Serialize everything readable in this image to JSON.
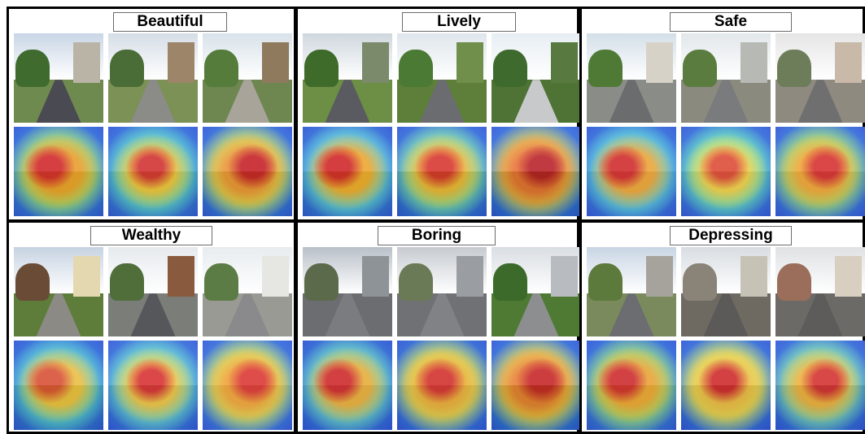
{
  "panels": [
    {
      "title": "Beautiful",
      "photos": [
        {
          "name": "beautiful-street-photo-1",
          "sky": "#c9d6e6",
          "ground": "#6f8a4e",
          "road": "#4a4a52",
          "trees": "#3f6b2e",
          "block": "#b9b4a6"
        },
        {
          "name": "beautiful-street-photo-2",
          "sky": "#d5dde6",
          "ground": "#7b9155",
          "road": "#8b8b88",
          "trees": "#4a6d37",
          "block": "#9c8568"
        },
        {
          "name": "beautiful-street-photo-3",
          "sky": "#d8e2e9",
          "ground": "#6e8751",
          "road": "#a8a49a",
          "trees": "#557c3b",
          "block": "#8f7a5d"
        }
      ],
      "heatmaps": [
        {
          "name": "beautiful-heatmap-1",
          "hot": "#d81e1e",
          "warm": "#f29d1f",
          "mid": "#9ee26a"
        },
        {
          "name": "beautiful-heatmap-2",
          "hot": "#d62626",
          "warm": "#f1c232",
          "mid": "#53d6c8"
        },
        {
          "name": "beautiful-heatmap-3",
          "hot": "#c8141a",
          "warm": "#f0902a",
          "mid": "#d9e04a"
        }
      ]
    },
    {
      "title": "Lively",
      "photos": [
        {
          "name": "lively-street-photo-1",
          "sky": "#cfd7de",
          "ground": "#6c8e45",
          "road": "#595b60",
          "trees": "#3e6a2a",
          "block": "#7a8a6a"
        },
        {
          "name": "lively-street-photo-2",
          "sky": "#dfe6ec",
          "ground": "#5d7f3a",
          "road": "#6a6c70",
          "trees": "#4b7a34",
          "block": "#6f8f4a"
        },
        {
          "name": "lively-street-photo-3",
          "sky": "#e7eef3",
          "ground": "#4f7334",
          "road": "#c7c9cb",
          "trees": "#3f6a2e",
          "block": "#587a40"
        }
      ],
      "heatmaps": [
        {
          "name": "lively-heatmap-1",
          "hot": "#d61d1d",
          "warm": "#f5a623",
          "mid": "#5fd6d9"
        },
        {
          "name": "lively-heatmap-2",
          "hot": "#db2a22",
          "warm": "#f3b52f",
          "mid": "#7fe0a0"
        },
        {
          "name": "lively-heatmap-3",
          "hot": "#b8121a",
          "warm": "#ec6a2a",
          "mid": "#e8c33a"
        }
      ]
    },
    {
      "title": "Safe",
      "photos": [
        {
          "name": "safe-street-photo-1",
          "sky": "#d3dfe8",
          "ground": "#8a8c88",
          "road": "#6b6c6e",
          "trees": "#4f7a36",
          "block": "#d6d2c8"
        },
        {
          "name": "safe-street-photo-2",
          "sky": "#e2e7ea",
          "ground": "#8b8a7e",
          "road": "#7a7b7c",
          "trees": "#5a7c3e",
          "block": "#b7b9b4"
        },
        {
          "name": "safe-street-photo-3",
          "sky": "#e4e5e4",
          "ground": "#8e8a80",
          "road": "#6f6f70",
          "trees": "#6d7d5a",
          "block": "#c9b9a8"
        }
      ],
      "heatmaps": [
        {
          "name": "safe-heatmap-1",
          "hot": "#d52020",
          "warm": "#f2a42b",
          "mid": "#56d4d8"
        },
        {
          "name": "safe-heatmap-2",
          "hot": "#e0402a",
          "warm": "#f3d23e",
          "mid": "#5ce0b8"
        },
        {
          "name": "safe-heatmap-3",
          "hot": "#d72424",
          "warm": "#f2a52a",
          "mid": "#a2e064"
        }
      ]
    },
    {
      "title": "Wealthy",
      "photos": [
        {
          "name": "wealthy-street-photo-1",
          "sky": "#c7d3e2",
          "ground": "#5e7d3b",
          "road": "#8c8a84",
          "trees": "#6a4b36",
          "block": "#e3d8b0"
        },
        {
          "name": "wealthy-street-photo-2",
          "sky": "#e6eaee",
          "ground": "#7a7d78",
          "road": "#55575a",
          "trees": "#4f6e3a",
          "block": "#8a5a3e"
        },
        {
          "name": "wealthy-street-photo-3",
          "sky": "#e8ecef",
          "ground": "#9a9a94",
          "road": "#8a8a8c",
          "trees": "#5b7c45",
          "block": "#e6e6e2"
        }
      ],
      "heatmaps": [
        {
          "name": "wealthy-heatmap-1",
          "hot": "#e04a2a",
          "warm": "#f4c23a",
          "mid": "#55d3d0"
        },
        {
          "name": "wealthy-heatmap-2",
          "hot": "#d92525",
          "warm": "#f3c63a",
          "mid": "#62d8c8"
        },
        {
          "name": "wealthy-heatmap-3",
          "hot": "#dc2a26",
          "warm": "#f2a02a",
          "mid": "#d8e24c"
        }
      ]
    },
    {
      "title": "Boring",
      "photos": [
        {
          "name": "boring-street-photo-1",
          "sky": "#b9c0c9",
          "ground": "#6c6d70",
          "road": "#7b7c80",
          "trees": "#5a6a4a",
          "block": "#8e9398"
        },
        {
          "name": "boring-street-photo-2",
          "sky": "#c6cbd0",
          "ground": "#707174",
          "road": "#818286",
          "trees": "#6b7a56",
          "block": "#9a9ea3"
        },
        {
          "name": "boring-street-photo-3",
          "sky": "#d9dee3",
          "ground": "#4f7a34",
          "road": "#8d8e90",
          "trees": "#3c6a2b",
          "block": "#b8bcc0"
        }
      ],
      "heatmaps": [
        {
          "name": "boring-heatmap-1",
          "hot": "#d82424",
          "warm": "#f3b434",
          "mid": "#6bdcc2"
        },
        {
          "name": "boring-heatmap-2",
          "hot": "#da2a24",
          "warm": "#f3b02e",
          "mid": "#e0e048"
        },
        {
          "name": "boring-heatmap-3",
          "hot": "#c91a1c",
          "warm": "#ee7a2a",
          "mid": "#ecd23c"
        }
      ]
    },
    {
      "title": "Depressing",
      "photos": [
        {
          "name": "depressing-street-photo-1",
          "sky": "#c9d5e4",
          "ground": "#7a8a5c",
          "road": "#6b6d70",
          "trees": "#5c7a3c",
          "block": "#a5a39b"
        },
        {
          "name": "depressing-street-photo-2",
          "sky": "#d8dde2",
          "ground": "#6e6a62",
          "road": "#5c5a58",
          "trees": "#8a8478",
          "block": "#c7c2b6"
        },
        {
          "name": "depressing-street-photo-3",
          "sky": "#dfe1e3",
          "ground": "#6b6a66",
          "road": "#5d5c5a",
          "trees": "#9a6e5a",
          "block": "#d8cfc1"
        }
      ],
      "heatmaps": [
        {
          "name": "depressing-heatmap-1",
          "hot": "#d42222",
          "warm": "#f2a42a",
          "mid": "#9ee06a"
        },
        {
          "name": "depressing-heatmap-2",
          "hot": "#d21f20",
          "warm": "#f2c03a",
          "mid": "#e4e24c"
        },
        {
          "name": "depressing-heatmap-3",
          "hot": "#d52624",
          "warm": "#f3b232",
          "mid": "#7fe0a8"
        }
      ]
    }
  ]
}
